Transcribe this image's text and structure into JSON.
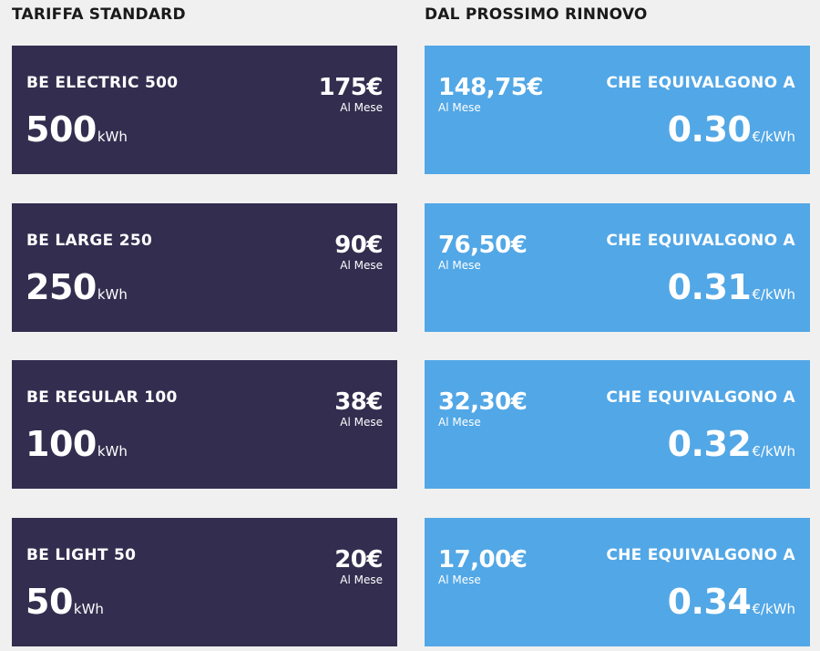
{
  "headers": {
    "left": "TARIFFA STANDARD",
    "right": "DAL PROSSIMO RINNOVO"
  },
  "colors": {
    "background": "#f0f0f0",
    "standard_card": "#332d4f",
    "renewal_card": "#52a7e6",
    "text_on_card": "#ffffff"
  },
  "plans": [
    {
      "name": "BE ELECTRIC 500",
      "kwh": "500",
      "kwh_unit": "kWh",
      "price": "175€",
      "price_period": "Al Mese",
      "new_price": "148,75€",
      "new_period": "Al Mese",
      "equiv_label": "CHE EQUIVALGONO A",
      "rate": "0.30",
      "rate_unit": "€/kWh"
    },
    {
      "name": "BE LARGE 250",
      "kwh": "250",
      "kwh_unit": "kWh",
      "price": "90€",
      "price_period": "Al Mese",
      "new_price": "76,50€",
      "new_period": "Al Mese",
      "equiv_label": "CHE EQUIVALGONO A",
      "rate": "0.31",
      "rate_unit": "€/kWh"
    },
    {
      "name": "BE REGULAR 100",
      "kwh": "100",
      "kwh_unit": "kWh",
      "price": "38€",
      "price_period": "Al Mese",
      "new_price": "32,30€",
      "new_period": "Al Mese",
      "equiv_label": "CHE EQUIVALGONO A",
      "rate": "0.32",
      "rate_unit": "€/kWh"
    },
    {
      "name": "BE LIGHT 50",
      "kwh": "50",
      "kwh_unit": "kWh",
      "price": "20€",
      "price_period": "Al Mese",
      "new_price": "17,00€",
      "new_period": "Al Mese",
      "equiv_label": "CHE EQUIVALGONO A",
      "rate": "0.34",
      "rate_unit": "€/kWh"
    }
  ]
}
